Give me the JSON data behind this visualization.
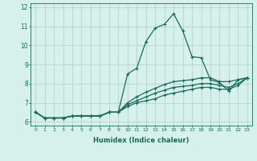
{
  "xlabel": "Humidex (Indice chaleur)",
  "bg_color": "#d6f0ec",
  "grid_color": "#c0d8d4",
  "line_color": "#1a6b5a",
  "xlim": [
    -0.5,
    23.5
  ],
  "ylim": [
    5.8,
    12.2
  ],
  "yticks": [
    6,
    7,
    8,
    9,
    10,
    11,
    12
  ],
  "xticks": [
    0,
    1,
    2,
    3,
    4,
    5,
    6,
    7,
    8,
    9,
    10,
    11,
    12,
    13,
    14,
    15,
    16,
    17,
    18,
    19,
    20,
    21,
    22,
    23
  ],
  "series": [
    [
      6.5,
      6.2,
      6.2,
      6.2,
      6.3,
      6.3,
      6.3,
      6.3,
      6.5,
      6.5,
      8.5,
      8.8,
      10.2,
      10.9,
      11.1,
      11.65,
      10.75,
      9.4,
      9.35,
      8.2,
      8.05,
      7.6,
      8.2,
      8.3
    ],
    [
      6.5,
      6.2,
      6.2,
      6.2,
      6.3,
      6.3,
      6.3,
      6.3,
      6.5,
      6.5,
      7.0,
      7.3,
      7.55,
      7.75,
      7.95,
      8.1,
      8.15,
      8.2,
      8.3,
      8.3,
      8.1,
      8.1,
      8.2,
      8.3
    ],
    [
      6.5,
      6.2,
      6.2,
      6.2,
      6.3,
      6.3,
      6.3,
      6.3,
      6.5,
      6.5,
      6.9,
      7.1,
      7.3,
      7.5,
      7.65,
      7.8,
      7.85,
      7.9,
      8.0,
      8.0,
      7.9,
      7.8,
      8.0,
      8.3
    ],
    [
      6.5,
      6.2,
      6.2,
      6.2,
      6.3,
      6.3,
      6.3,
      6.3,
      6.5,
      6.5,
      6.8,
      7.0,
      7.1,
      7.2,
      7.4,
      7.5,
      7.6,
      7.7,
      7.8,
      7.8,
      7.7,
      7.7,
      7.9,
      8.3
    ]
  ]
}
